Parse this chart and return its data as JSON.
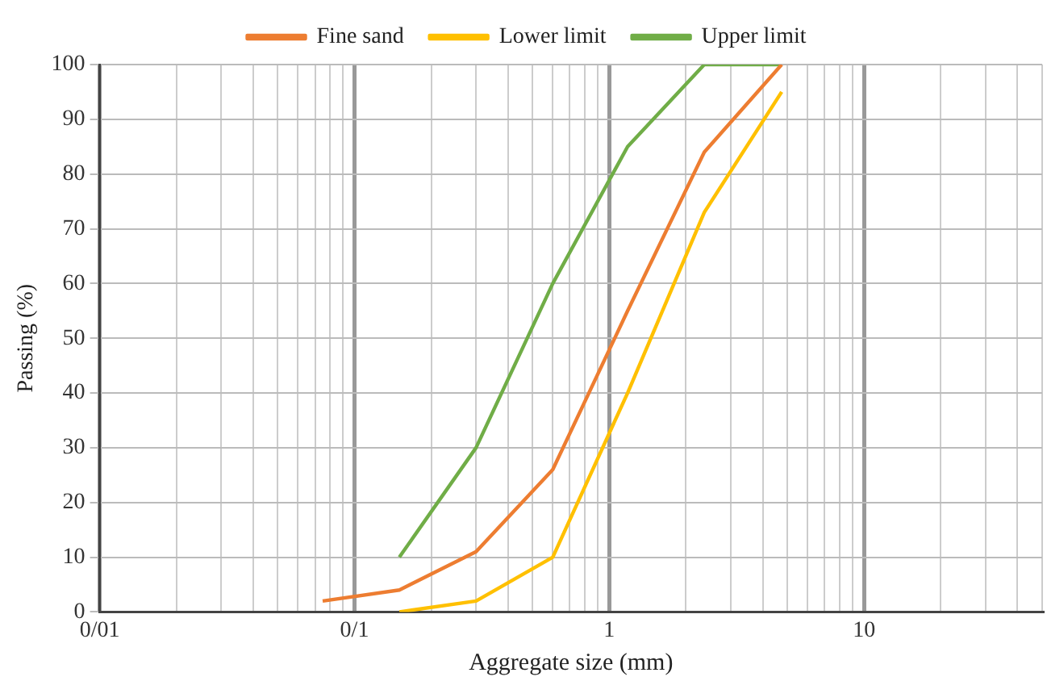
{
  "chart_data": {
    "type": "line",
    "xlabel": "Aggregate size (mm)",
    "ylabel": "Passing (%)",
    "log": "x",
    "xlim": [
      0.01,
      50
    ],
    "xticks": [
      {
        "value": 0.01,
        "label": "0/01"
      },
      {
        "value": 0.02,
        "label": null
      },
      {
        "value": 0.03,
        "label": null
      },
      {
        "value": 0.04,
        "label": null
      },
      {
        "value": 0.05,
        "label": null
      },
      {
        "value": 0.06,
        "label": null
      },
      {
        "value": 0.07,
        "label": null
      },
      {
        "value": 0.08,
        "label": null
      },
      {
        "value": 0.09,
        "label": null
      },
      {
        "value": 0.1,
        "label": "0/1"
      },
      {
        "value": 0.2,
        "label": null
      },
      {
        "value": 0.3,
        "label": null
      },
      {
        "value": 0.4,
        "label": null
      },
      {
        "value": 0.5,
        "label": null
      },
      {
        "value": 0.6,
        "label": null
      },
      {
        "value": 0.7,
        "label": null
      },
      {
        "value": 0.8,
        "label": null
      },
      {
        "value": 0.9,
        "label": null
      },
      1,
      {
        "value": 2,
        "label": null
      },
      {
        "value": 3,
        "label": null
      },
      {
        "value": 4,
        "label": null
      },
      {
        "value": 5,
        "label": null
      },
      {
        "value": 6,
        "label": null
      },
      {
        "value": 7,
        "label": null
      },
      {
        "value": 8,
        "label": null
      },
      {
        "value": 9,
        "label": null
      },
      10,
      {
        "value": 20,
        "label": null
      },
      {
        "value": 30,
        "label": null
      },
      {
        "value": 40,
        "label": null
      },
      {
        "value": 50,
        "label": null
      }
    ],
    "ylim": [
      0,
      100
    ],
    "yticks": [
      0,
      10,
      20,
      30,
      40,
      50,
      60,
      70,
      80,
      90,
      100
    ],
    "grid": true,
    "legend": "top",
    "marker": "none",
    "line_style": "solid",
    "series": [
      {
        "name": "Fine sand",
        "color": "#ed7d31",
        "x": [
          0.075,
          0.15,
          0.3,
          0.6,
          1.18,
          2.36,
          4.75
        ],
        "values": [
          2,
          4,
          11,
          26,
          55,
          84,
          100
        ]
      },
      {
        "name": "Lower limit",
        "color": "#ffc000",
        "x": [
          0.15,
          0.3,
          0.6,
          1.18,
          2.36,
          4.75
        ],
        "values": [
          0,
          2,
          10,
          40,
          73,
          95
        ]
      },
      {
        "name": "Upper limit",
        "color": "#70ad47",
        "x": [
          0.15,
          0.3,
          0.6,
          1.18,
          2.36,
          4.75
        ],
        "values": [
          10,
          30,
          60,
          85,
          100,
          100
        ]
      }
    ]
  }
}
